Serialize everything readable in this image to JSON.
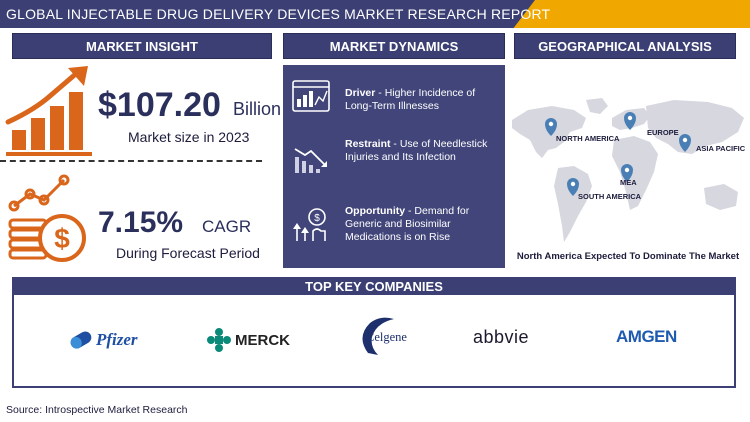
{
  "header": {
    "title": "GLOBAL INJECTABLE DRUG DELIVERY DEVICES  MARKET RESEARCH REPORT"
  },
  "sections": {
    "insight": "MARKET INSIGHT",
    "dynamics": "MARKET DYNAMICS",
    "geo": "GEOGRAPHICAL ANALYSIS"
  },
  "insight": {
    "market_value": "$107.20",
    "market_unit": "Billion",
    "market_caption": "Market size in 2023",
    "cagr_value": "7.15%",
    "cagr_unit": "CAGR",
    "cagr_caption": "During Forecast Period"
  },
  "dynamics": {
    "driver_label": "Driver",
    "driver_text": " - Higher Incidence of Long-Term Illnesses",
    "restraint_label": "Restraint",
    "restraint_text": " - Use of Needlestick Injuries and Its Infection",
    "opportunity_label": "Opportunity",
    "opportunity_text": " - Demand for Generic and Biosimilar Medications is on Rise"
  },
  "geo": {
    "regions": [
      "NORTH AMERICA",
      "EUROPE",
      "ASIA PACIFIC",
      "MEA",
      "SOUTH AMERICA"
    ],
    "caption": "North America Expected To Dominate The Market"
  },
  "companies": {
    "title": "TOP KEY COMPANIES",
    "names": [
      "Pfizer",
      "MERCK",
      "Celgene",
      "abbvie",
      "AMGEN"
    ]
  },
  "footer": {
    "source": "Source: Introspective Market Research"
  },
  "colors": {
    "navy": "#3b3f73",
    "accent": "#f0a800",
    "orange_icon": "#d9661b"
  }
}
